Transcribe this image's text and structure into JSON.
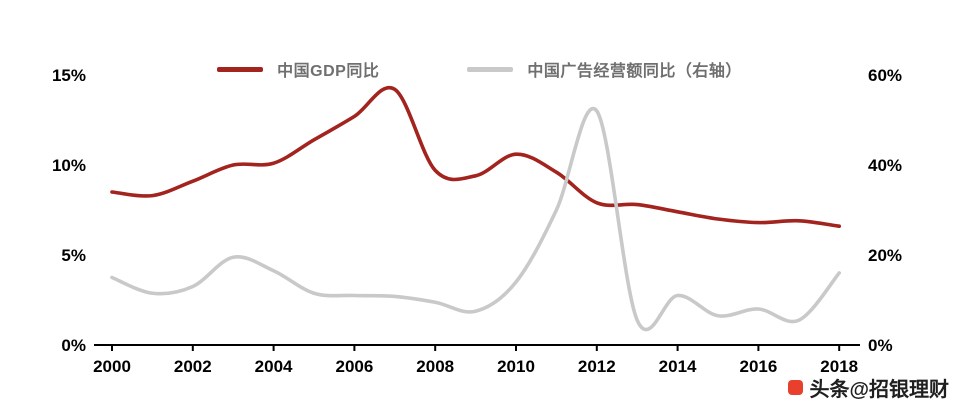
{
  "chart_data": {
    "type": "line",
    "x": [
      2000,
      2001,
      2002,
      2003,
      2004,
      2005,
      2006,
      2007,
      2008,
      2009,
      2010,
      2011,
      2012,
      2013,
      2014,
      2015,
      2016,
      2017,
      2018
    ],
    "x_tick_values": [
      2000,
      2002,
      2004,
      2006,
      2008,
      2010,
      2012,
      2014,
      2016,
      2018
    ],
    "x_tick_labels": [
      "2000",
      "2002",
      "2004",
      "2006",
      "2008",
      "2010",
      "2012",
      "2014",
      "2016",
      "2018"
    ],
    "left_axis": {
      "min": 0,
      "max": 15,
      "tick_values": [
        0,
        5,
        10,
        15
      ],
      "tick_labels": [
        "0%",
        "5%",
        "10%",
        "15%"
      ]
    },
    "right_axis": {
      "min": 0,
      "max": 60,
      "tick_values": [
        0,
        20,
        40,
        60
      ],
      "tick_labels": [
        "0%",
        "20%",
        "40%",
        "60%"
      ]
    },
    "series": [
      {
        "key": "gdp",
        "name": "中国GDP同比",
        "axis": "left",
        "color": "#a3231e",
        "values": [
          8.5,
          8.3,
          9.1,
          10.0,
          10.1,
          11.4,
          12.7,
          14.2,
          9.7,
          9.4,
          10.6,
          9.6,
          7.9,
          7.8,
          7.4,
          7.0,
          6.8,
          6.9,
          6.6
        ]
      },
      {
        "key": "ad",
        "name": "中国广告经营额同比（右轴）",
        "axis": "right",
        "color": "#c9c9c9",
        "values": [
          15,
          11.5,
          13,
          19.5,
          16.5,
          11.5,
          11,
          10.8,
          9.5,
          7.5,
          14,
          30,
          52,
          5.5,
          11,
          6.5,
          8,
          5.5,
          16
        ]
      }
    ],
    "grid": false,
    "legend_position": "top",
    "axis_color": "#000000"
  },
  "watermark": {
    "text": "头条@招银理财",
    "icon_color": "#e8402d",
    "text_color": "#1f1f1f"
  }
}
